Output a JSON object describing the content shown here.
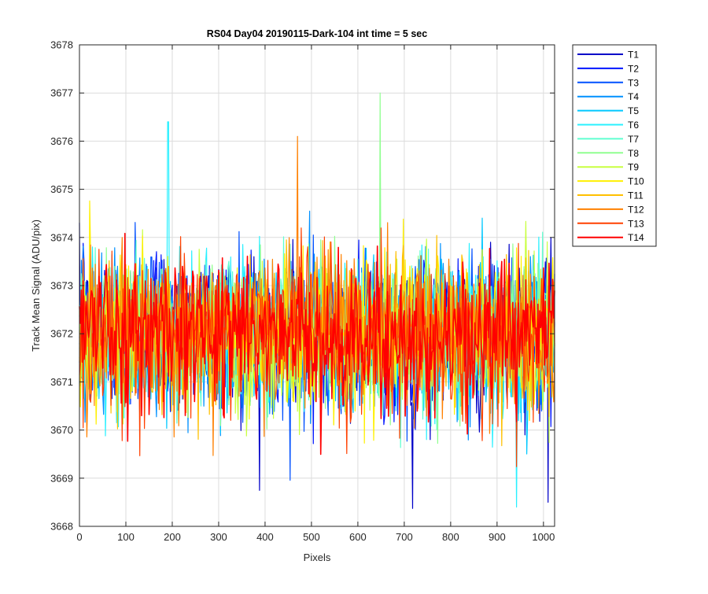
{
  "chart_data": {
    "type": "line",
    "title": "RS04 Day04 20190115-Dark-104 int time = 5 sec",
    "xlabel": "Pixels",
    "ylabel": "Track Mean Signal (ADU/pix)",
    "xlim": [
      0,
      1024
    ],
    "ylim": [
      3668,
      3678
    ],
    "xticks": [
      0,
      100,
      200,
      300,
      400,
      500,
      600,
      700,
      800,
      900,
      1000
    ],
    "yticks": [
      3668,
      3669,
      3670,
      3671,
      3672,
      3673,
      3674,
      3675,
      3676,
      3677,
      3678
    ],
    "grid": true,
    "legend_position": "outside-top-right",
    "series_mean": 3672.0,
    "series": [
      {
        "name": "T1",
        "color": "#0000C8"
      },
      {
        "name": "T2",
        "color": "#0014FF"
      },
      {
        "name": "T3",
        "color": "#0050FF"
      },
      {
        "name": "T4",
        "color": "#0090FF"
      },
      {
        "name": "T5",
        "color": "#00C8FF"
      },
      {
        "name": "T6",
        "color": "#28F0FF"
      },
      {
        "name": "T7",
        "color": "#60FFD0"
      },
      {
        "name": "T8",
        "color": "#90FF90"
      },
      {
        "name": "T9",
        "color": "#C8FF40"
      },
      {
        "name": "T10",
        "color": "#FFF000"
      },
      {
        "name": "T11",
        "color": "#FFC000"
      },
      {
        "name": "T12",
        "color": "#FF8000"
      },
      {
        "name": "T13",
        "color": "#FF4000"
      },
      {
        "name": "T14",
        "color": "#FF0000"
      }
    ],
    "peaks": [
      {
        "series": "T8",
        "x": 648,
        "y": 3677.0
      },
      {
        "series": "T6",
        "x": 191,
        "y": 3676.4
      },
      {
        "series": "T12",
        "x": 470,
        "y": 3676.1
      },
      {
        "series": "T6",
        "x": 942,
        "y": 3668.4
      },
      {
        "series": "T1",
        "x": 1010,
        "y": 3668.5
      }
    ]
  }
}
